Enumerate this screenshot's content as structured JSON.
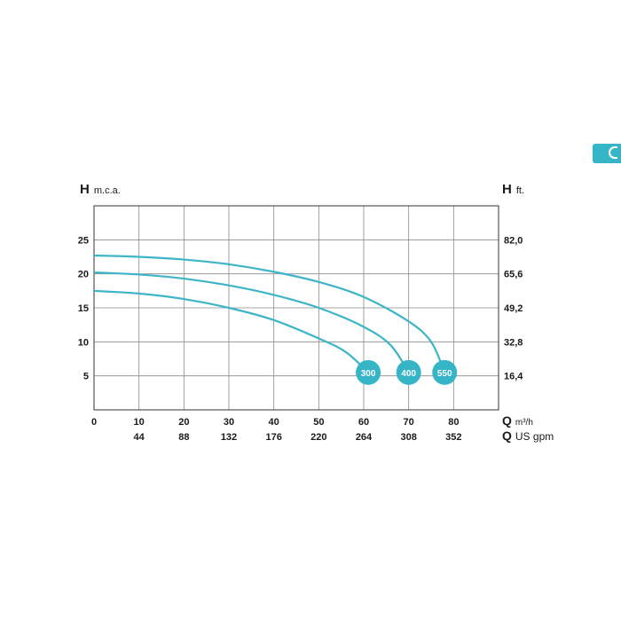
{
  "colors": {
    "curve": "#3db5c6",
    "marker_fill": "#36b5c7",
    "grid": "#8a8a8a",
    "axis": "#333333",
    "text": "#1a1a1a"
  },
  "chart_data": {
    "type": "line",
    "left_axis": {
      "symbol": "H",
      "unit": "m.c.a.",
      "ticks": [
        "5",
        "10",
        "15",
        "20",
        "25"
      ],
      "ylim": [
        0,
        30
      ]
    },
    "right_axis": {
      "symbol": "H",
      "unit": "ft.",
      "ticks": [
        "16,4",
        "32,8",
        "49,2",
        "65,6",
        "82,0"
      ]
    },
    "x_axis": {
      "symbol": "Q",
      "unit": "m³/h",
      "ticks": [
        "0",
        "10",
        "20",
        "30",
        "40",
        "50",
        "60",
        "70",
        "80"
      ],
      "xlim": [
        0,
        90
      ]
    },
    "x_axis_secondary": {
      "symbol": "Q",
      "unit": "US gpm",
      "ticks": [
        "44",
        "88",
        "132",
        "176",
        "220",
        "264",
        "308",
        "352"
      ]
    },
    "grid": true,
    "series": [
      {
        "name": "300",
        "x": [
          0,
          10,
          20,
          30,
          40,
          50,
          56,
          61
        ],
        "y": [
          17.5,
          17.1,
          16.3,
          15.0,
          13.2,
          10.5,
          8.5,
          5.5
        ]
      },
      {
        "name": "400",
        "x": [
          0,
          10,
          20,
          30,
          40,
          50,
          60,
          66,
          70
        ],
        "y": [
          20.2,
          19.9,
          19.3,
          18.3,
          16.9,
          15.0,
          12.2,
          9.5,
          5.5
        ]
      },
      {
        "name": "550",
        "x": [
          0,
          10,
          20,
          30,
          40,
          50,
          60,
          70,
          75,
          78
        ],
        "y": [
          22.7,
          22.5,
          22.1,
          21.4,
          20.3,
          18.8,
          16.6,
          13.0,
          10.0,
          5.5
        ]
      }
    ]
  }
}
